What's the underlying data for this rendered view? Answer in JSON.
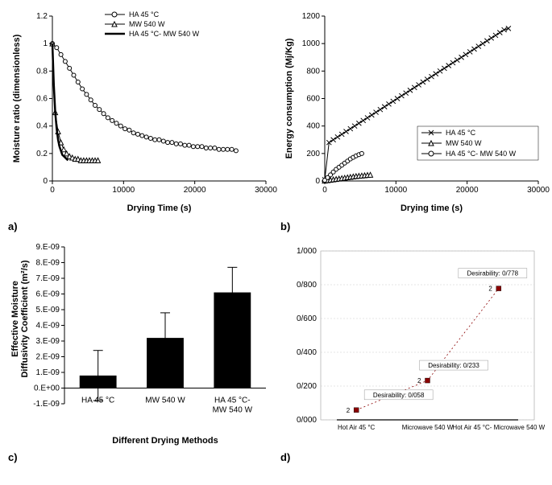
{
  "panelA": {
    "type": "scatter-line",
    "xlabel": "Drying Time (s)",
    "ylabel": "Moisture ratio (dimensionless)",
    "xlim": [
      0,
      30000
    ],
    "ylim": [
      0,
      1.2
    ],
    "xticks": [
      0,
      10000,
      20000,
      30000
    ],
    "yticks": [
      0,
      0.2,
      0.4,
      0.6,
      0.8,
      1,
      1.2
    ],
    "series": [
      {
        "name": "HA 45 °C",
        "marker": "circle",
        "line_width": 1,
        "data": [
          [
            0,
            1.0
          ],
          [
            600,
            0.97
          ],
          [
            1200,
            0.92
          ],
          [
            1800,
            0.87
          ],
          [
            2400,
            0.82
          ],
          [
            3000,
            0.77
          ],
          [
            3600,
            0.72
          ],
          [
            4200,
            0.67
          ],
          [
            4800,
            0.63
          ],
          [
            5400,
            0.59
          ],
          [
            6000,
            0.55
          ],
          [
            6600,
            0.52
          ],
          [
            7200,
            0.49
          ],
          [
            7800,
            0.46
          ],
          [
            8400,
            0.44
          ],
          [
            9000,
            0.42
          ],
          [
            9600,
            0.4
          ],
          [
            10200,
            0.38
          ],
          [
            10800,
            0.37
          ],
          [
            11400,
            0.35
          ],
          [
            12000,
            0.34
          ],
          [
            12600,
            0.33
          ],
          [
            13200,
            0.32
          ],
          [
            13800,
            0.31
          ],
          [
            14400,
            0.3
          ],
          [
            15000,
            0.3
          ],
          [
            15600,
            0.29
          ],
          [
            16200,
            0.28
          ],
          [
            16800,
            0.28
          ],
          [
            17400,
            0.27
          ],
          [
            18000,
            0.27
          ],
          [
            18600,
            0.26
          ],
          [
            19200,
            0.26
          ],
          [
            19800,
            0.25
          ],
          [
            20400,
            0.25
          ],
          [
            21000,
            0.25
          ],
          [
            21600,
            0.24
          ],
          [
            22200,
            0.24
          ],
          [
            22800,
            0.24
          ],
          [
            23400,
            0.23
          ],
          [
            24000,
            0.23
          ],
          [
            24600,
            0.23
          ],
          [
            25200,
            0.23
          ],
          [
            25800,
            0.22
          ]
        ]
      },
      {
        "name": "MW 540 W",
        "marker": "triangle",
        "line_width": 1,
        "data": [
          [
            0,
            1.0
          ],
          [
            400,
            0.5
          ],
          [
            800,
            0.36
          ],
          [
            1200,
            0.28
          ],
          [
            1600,
            0.23
          ],
          [
            2000,
            0.2
          ],
          [
            2400,
            0.18
          ],
          [
            2800,
            0.17
          ],
          [
            3200,
            0.16
          ],
          [
            3600,
            0.16
          ],
          [
            4000,
            0.15
          ],
          [
            4400,
            0.15
          ],
          [
            4800,
            0.15
          ],
          [
            5200,
            0.15
          ],
          [
            5600,
            0.15
          ],
          [
            6000,
            0.15
          ],
          [
            6400,
            0.15
          ]
        ]
      },
      {
        "name": "HA 45 °C- MW 540 W",
        "marker": "none",
        "line_width": 2.5,
        "data": [
          [
            0,
            1.0
          ],
          [
            200,
            0.7
          ],
          [
            400,
            0.5
          ],
          [
            600,
            0.38
          ],
          [
            800,
            0.3
          ],
          [
            1000,
            0.25
          ],
          [
            1200,
            0.22
          ],
          [
            1400,
            0.19
          ],
          [
            1600,
            0.18
          ],
          [
            1800,
            0.17
          ],
          [
            2000,
            0.16
          ],
          [
            2200,
            0.15
          ]
        ]
      }
    ]
  },
  "panelB": {
    "type": "scatter-line",
    "xlabel": "Drying time (s)",
    "ylabel": "Energy consumption (Mj/Kg)",
    "xlim": [
      0,
      30000
    ],
    "ylim": [
      0,
      1200
    ],
    "xticks": [
      0,
      10000,
      20000,
      30000
    ],
    "yticks": [
      0,
      200,
      400,
      600,
      800,
      1000,
      1200
    ],
    "series": [
      {
        "name": "HA 45 °C",
        "marker": "x",
        "data": [
          [
            0,
            10
          ],
          [
            600,
            280
          ],
          [
            1200,
            300
          ],
          [
            1800,
            320
          ],
          [
            2400,
            340
          ],
          [
            3000,
            360
          ],
          [
            3600,
            380
          ],
          [
            4200,
            400
          ],
          [
            4800,
            420
          ],
          [
            5400,
            440
          ],
          [
            6000,
            460
          ],
          [
            6600,
            480
          ],
          [
            7200,
            500
          ],
          [
            7800,
            520
          ],
          [
            8400,
            540
          ],
          [
            9000,
            560
          ],
          [
            9600,
            580
          ],
          [
            10200,
            600
          ],
          [
            10800,
            620
          ],
          [
            11400,
            640
          ],
          [
            12000,
            660
          ],
          [
            12600,
            680
          ],
          [
            13200,
            700
          ],
          [
            13800,
            720
          ],
          [
            14400,
            740
          ],
          [
            15000,
            760
          ],
          [
            15600,
            780
          ],
          [
            16200,
            800
          ],
          [
            16800,
            820
          ],
          [
            17400,
            840
          ],
          [
            18000,
            860
          ],
          [
            18600,
            880
          ],
          [
            19200,
            900
          ],
          [
            19800,
            920
          ],
          [
            20400,
            940
          ],
          [
            21000,
            960
          ],
          [
            21600,
            980
          ],
          [
            22200,
            1000
          ],
          [
            22800,
            1020
          ],
          [
            23400,
            1040
          ],
          [
            24000,
            1060
          ],
          [
            24600,
            1080
          ],
          [
            25200,
            1100
          ],
          [
            25800,
            1110
          ]
        ]
      },
      {
        "name": "MW 540 W",
        "marker": "triangle",
        "data": [
          [
            0,
            2
          ],
          [
            400,
            5
          ],
          [
            800,
            8
          ],
          [
            1200,
            11
          ],
          [
            1600,
            14
          ],
          [
            2000,
            17
          ],
          [
            2400,
            20
          ],
          [
            2800,
            23
          ],
          [
            3200,
            26
          ],
          [
            3600,
            29
          ],
          [
            4000,
            32
          ],
          [
            4400,
            35
          ],
          [
            4800,
            37
          ],
          [
            5200,
            39
          ],
          [
            5600,
            41
          ],
          [
            6000,
            43
          ],
          [
            6400,
            45
          ]
        ]
      },
      {
        "name": "HA 45 °C- MW 540 W",
        "marker": "circle",
        "data": [
          [
            0,
            5
          ],
          [
            400,
            25
          ],
          [
            800,
            45
          ],
          [
            1200,
            65
          ],
          [
            1600,
            85
          ],
          [
            2000,
            100
          ],
          [
            2400,
            115
          ],
          [
            2800,
            130
          ],
          [
            3200,
            145
          ],
          [
            3600,
            160
          ],
          [
            4000,
            172
          ],
          [
            4400,
            183
          ],
          [
            4800,
            192
          ],
          [
            5200,
            200
          ]
        ]
      }
    ]
  },
  "panelC": {
    "type": "bar",
    "xlabel": "Different Drying Methods",
    "ylabel": "Effective Moisture Diffusivity Coefficient (m²/s)",
    "categories": [
      "HA 45 °C",
      "MW 540 W",
      "HA 45 °C- MW 540 W"
    ],
    "values": [
      8e-10,
      3.2e-09,
      6.1e-09
    ],
    "err": [
      1.6e-09,
      1.6e-09,
      1.6e-09
    ],
    "ylim": [
      -1e-09,
      9e-09
    ],
    "yticks": [
      "-1.E-09",
      "0.E+00",
      "1.E-09",
      "2.E-09",
      "3.E-09",
      "4.E-09",
      "5.E-09",
      "6.E-09",
      "7.E-09",
      "8.E-09",
      "9.E-09"
    ],
    "ytick_vals": [
      -1e-09,
      0,
      1e-09,
      2e-09,
      3e-09,
      4e-09,
      5e-09,
      6e-09,
      7e-09,
      8e-09,
      9e-09
    ],
    "bar_color": "#000000"
  },
  "panelD": {
    "type": "line",
    "categories": [
      "Hot Air 45 °C",
      "Microwave 540 W",
      "Hot Air 45 °C- Microwave 540 W"
    ],
    "values": [
      0.058,
      0.233,
      0.778
    ],
    "labels": [
      "Desirability: 0/058",
      "Desirability: 0/233",
      "Desirability: 0/778"
    ],
    "point_prefix": "2",
    "ylim": [
      0,
      1.0
    ],
    "yticks": [
      "0/000",
      "0/200",
      "0/400",
      "0/600",
      "0/800",
      "1/000"
    ],
    "ytick_vals": [
      0,
      0.2,
      0.4,
      0.6,
      0.8,
      1.0
    ],
    "marker_color": "#8b0000",
    "line_color": "#8b0000",
    "grid_color": "#cccccc"
  },
  "labels": {
    "a": "a)",
    "b": "b)",
    "c": "c)",
    "d": "d)"
  }
}
